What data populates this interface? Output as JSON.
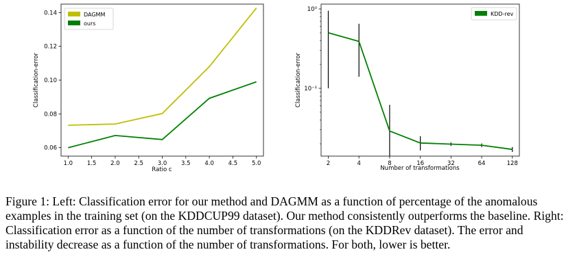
{
  "chart_data": [
    {
      "type": "line",
      "title": "",
      "xlabel": "Ratio c",
      "ylabel": "Classification-error",
      "xlim": [
        0.85,
        5.15
      ],
      "ylim": [
        0.055,
        0.145
      ],
      "xticks": [
        1.0,
        1.5,
        2.0,
        2.5,
        3.0,
        3.5,
        4.0,
        4.5,
        5.0
      ],
      "xtick_labels": [
        "1.0",
        "1.5",
        "2.0",
        "2.5",
        "3.0",
        "3.5",
        "4.0",
        "4.5",
        "5.0"
      ],
      "yticks": [
        0.06,
        0.08,
        0.1,
        0.12,
        0.14
      ],
      "ytick_labels": [
        "0.06",
        "0.08",
        "0.10",
        "0.12",
        "0.14"
      ],
      "x": [
        1.0,
        2.0,
        3.0,
        4.0,
        5.0
      ],
      "series": [
        {
          "name": "DAGMM",
          "color": "#bfbf00",
          "values": [
            0.0733,
            0.074,
            0.0802,
            0.108,
            0.1427
          ]
        },
        {
          "name": "ours",
          "color": "#008000",
          "values": [
            0.06,
            0.0672,
            0.0648,
            0.0892,
            0.099
          ]
        }
      ],
      "legend": "top-left",
      "grid": false
    },
    {
      "type": "line",
      "title": "",
      "xlabel": "Number of transformations",
      "ylabel": "Classification-error",
      "xscale": "log2",
      "yscale": "log",
      "xlim": [
        1.7,
        150
      ],
      "ylim": [
        0.014,
        1.15
      ],
      "xticks": [
        2,
        4,
        8,
        16,
        32,
        64,
        128
      ],
      "xtick_labels": [
        "2",
        "4",
        "8",
        "16",
        "32",
        "64",
        "128"
      ],
      "yticks": [
        0.1,
        1.0
      ],
      "ytick_labels": [
        "10⁻¹",
        "10⁰"
      ],
      "x": [
        2,
        4,
        8,
        16,
        32,
        64,
        128
      ],
      "series": [
        {
          "name": "KDD-rev",
          "color": "#008000",
          "values": [
            0.5,
            0.39,
            0.029,
            0.0205,
            0.0198,
            0.0192,
            0.017
          ],
          "error_low": [
            0.1,
            0.14,
            0.014,
            0.0165,
            0.0188,
            0.0182,
            0.0158
          ],
          "error_high": [
            0.95,
            0.65,
            0.062,
            0.025,
            0.0208,
            0.0202,
            0.0182
          ]
        }
      ],
      "legend": "top-right",
      "grid": false
    }
  ],
  "caption": "Figure 1: Left: Classification error for our method and DAGMM as a function of percentage of the anomalous examples in the training set (on the KDDCUP99 dataset). Our method consistently outperforms the baseline. Right: Classification error as a function of the number of transformations (on the KDDRev dataset). The error and instability decrease as a function of the number of transformations. For both, lower is better."
}
